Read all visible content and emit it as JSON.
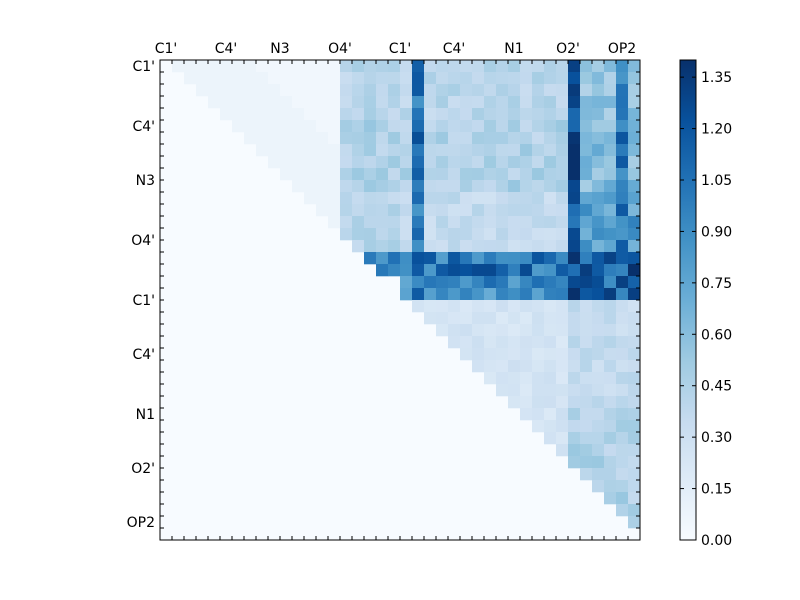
{
  "chart_data": {
    "type": "heatmap",
    "title": "",
    "xlabel": "",
    "ylabel": "",
    "n": 40,
    "x_tick_labels": [
      "C1'",
      "C4'",
      "N3",
      "O4'",
      "C1'",
      "C4'",
      "N1",
      "O2'",
      "OP2"
    ],
    "y_tick_labels": [
      "C1'",
      "C4'",
      "N3",
      "O4'",
      "C1'",
      "C4'",
      "N1",
      "O2'",
      "OP2"
    ],
    "x_tick_positions": [
      0.5,
      5.5,
      10,
      15,
      20,
      24.5,
      29.5,
      34,
      38.5
    ],
    "y_tick_positions": [
      0.5,
      5.5,
      10,
      15,
      20,
      24.5,
      29.5,
      34,
      38.5
    ],
    "colorbar": {
      "min": 0.0,
      "max": 1.4,
      "tick_labels": [
        "0.00",
        "0.15",
        "0.30",
        "0.45",
        "0.60",
        "0.75",
        "0.90",
        "1.05",
        "1.20",
        "1.35"
      ],
      "colormap": [
        "#f7fbff",
        "#deebf7",
        "#c6dbef",
        "#9ecae1",
        "#6baed6",
        "#4292c6",
        "#2171b5",
        "#08519c",
        "#08306b"
      ]
    },
    "structure": "upper-triangular matrix; cells on and below the diagonal are ~0",
    "heavy_columns": [
      [
        21,
        1.05
      ],
      [
        34,
        1.25
      ],
      [
        38,
        1.0
      ]
    ],
    "heavy_rows": [
      [
        16,
        1.0
      ],
      [
        17,
        1.05
      ]
    ],
    "block_levels": [
      {
        "rows": [
          0,
          4
        ],
        "cols": [
          15,
          19
        ],
        "value": 0.4
      },
      {
        "rows": [
          0,
          4
        ],
        "cols": [
          20,
          33
        ],
        "value": 0.4
      },
      {
        "rows": [
          0,
          4
        ],
        "cols": [
          35,
          39
        ],
        "value": 0.55
      },
      {
        "rows": [
          5,
          10
        ],
        "cols": [
          15,
          19
        ],
        "value": 0.45
      },
      {
        "rows": [
          5,
          10
        ],
        "cols": [
          20,
          33
        ],
        "value": 0.45
      },
      {
        "rows": [
          5,
          10
        ],
        "cols": [
          35,
          39
        ],
        "value": 0.6
      },
      {
        "rows": [
          11,
          15
        ],
        "cols": [
          15,
          19
        ],
        "value": 0.4
      },
      {
        "rows": [
          11,
          15
        ],
        "cols": [
          20,
          33
        ],
        "value": 0.35
      },
      {
        "rows": [
          11,
          15
        ],
        "cols": [
          35,
          39
        ],
        "value": 0.8
      },
      {
        "rows": [
          16,
          19
        ],
        "cols": [
          20,
          33
        ],
        "value": 0.9
      },
      {
        "rows": [
          16,
          19
        ],
        "cols": [
          35,
          39
        ],
        "value": 1.1
      },
      {
        "rows": [
          20,
          33
        ],
        "cols": [
          20,
          33
        ],
        "value": 0.25
      },
      {
        "rows": [
          20,
          28
        ],
        "cols": [
          34,
          39
        ],
        "value": 0.35
      },
      {
        "rows": [
          29,
          39
        ],
        "cols": [
          34,
          39
        ],
        "value": 0.45
      }
    ]
  }
}
